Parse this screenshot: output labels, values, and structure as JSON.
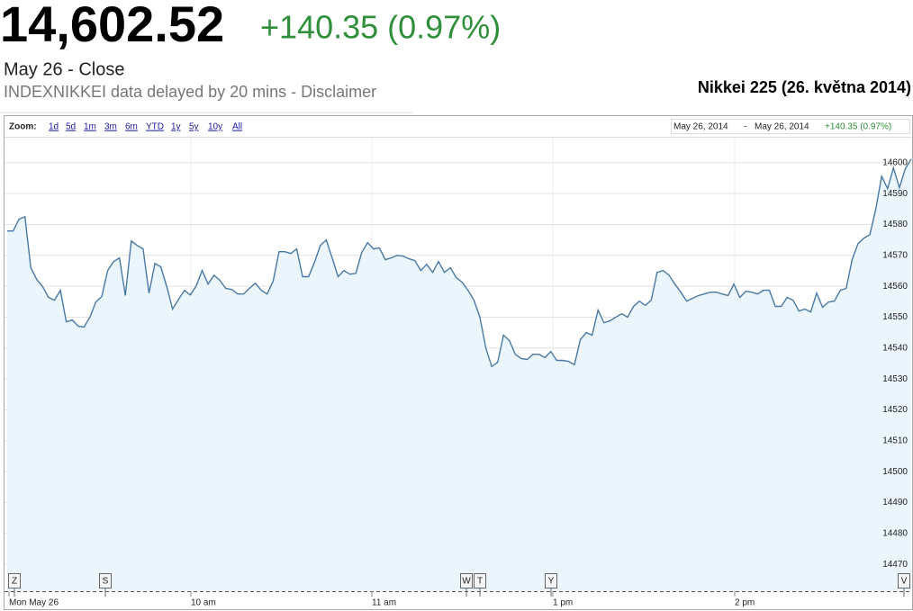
{
  "header": {
    "price": "14,602.52",
    "change": "+140.35 (0.97%)",
    "status": "May 26 - Close",
    "note": "INDEXNIKKEI data delayed by 20 mins - Disclaimer",
    "caption": "Nikkei 225 (26. května 2014)"
  },
  "toolbar": {
    "zoom_label": "Zoom:",
    "zoom_options": [
      "1d",
      "5d",
      "1m",
      "3m",
      "6m",
      "YTD",
      "1y",
      "5y",
      "10y",
      "All"
    ],
    "range": [
      "May 26, 2014",
      "May 26, 2014"
    ],
    "separator": "-"
  },
  "chart_data": {
    "type": "line",
    "color": "#4a79a5",
    "fill": "#eaf5fc",
    "grid": true,
    "ylim": [
      14461.3,
      14608.1
    ],
    "yticks": [
      14470,
      14480,
      14490,
      14500,
      14510,
      14520,
      14530,
      14540,
      14550,
      14560,
      14570,
      14580,
      14590,
      14600
    ],
    "x_labels": [
      "Mon May 26",
      "10 am",
      "11 am",
      "1 pm",
      "2 pm"
    ],
    "flags": [
      "Z",
      "S",
      "W",
      "T",
      "Y",
      "V"
    ],
    "values": [
      14577.9,
      14577.9,
      14581.7,
      14582.5,
      14566.0,
      14562.2,
      14559.9,
      14556.4,
      14555.5,
      14558.7,
      14548.5,
      14549.1,
      14547.1,
      14546.8,
      14550.0,
      14554.9,
      14556.7,
      14565.1,
      14568.0,
      14569.2,
      14557.0,
      14574.7,
      14573.2,
      14572.1,
      14557.8,
      14567.4,
      14566.3,
      14559.9,
      14552.6,
      14555.8,
      14558.7,
      14557.2,
      14560.2,
      14565.1,
      14560.7,
      14563.6,
      14561.9,
      14559.3,
      14559.0,
      14557.5,
      14557.5,
      14559.3,
      14561.0,
      14558.7,
      14557.5,
      14561.6,
      14571.2,
      14571.2,
      14570.6,
      14572.1,
      14563.1,
      14563.1,
      14567.7,
      14573.2,
      14575.0,
      14569.2,
      14563.1,
      14565.1,
      14563.9,
      14564.2,
      14570.9,
      14574.1,
      14572.1,
      14572.4,
      14568.6,
      14569.2,
      14570.0,
      14569.8,
      14568.9,
      14568.3,
      14565.1,
      14567.1,
      14564.5,
      14568.0,
      14564.5,
      14566.0,
      14562.8,
      14561.3,
      14558.7,
      14555.5,
      14550.0,
      14540.1,
      14534.0,
      14535.4,
      14544.2,
      14542.4,
      14538.0,
      14536.6,
      14536.3,
      14538.0,
      14538.0,
      14536.9,
      14538.9,
      14536.0,
      14536.0,
      14535.7,
      14534.6,
      14542.7,
      14545.0,
      14544.2,
      14552.3,
      14548.2,
      14548.8,
      14550.0,
      14551.1,
      14550.0,
      14553.5,
      14555.2,
      14553.8,
      14555.5,
      14564.5,
      14565.1,
      14563.6,
      14560.7,
      14558.1,
      14555.2,
      14556.1,
      14557.0,
      14557.5,
      14558.1,
      14558.1,
      14557.5,
      14557.0,
      14560.7,
      14556.4,
      14558.4,
      14558.1,
      14557.5,
      14558.7,
      14558.7,
      14553.5,
      14553.5,
      14556.4,
      14555.5,
      14552.0,
      14552.6,
      14551.7,
      14557.8,
      14553.2,
      14554.9,
      14555.2,
      14558.7,
      14559.3,
      14568.6,
      14573.8,
      14575.6,
      14576.7,
      14584.9,
      14595.6,
      14591.6,
      14598.3,
      14591.9,
      14598.0,
      14601.2
    ]
  }
}
